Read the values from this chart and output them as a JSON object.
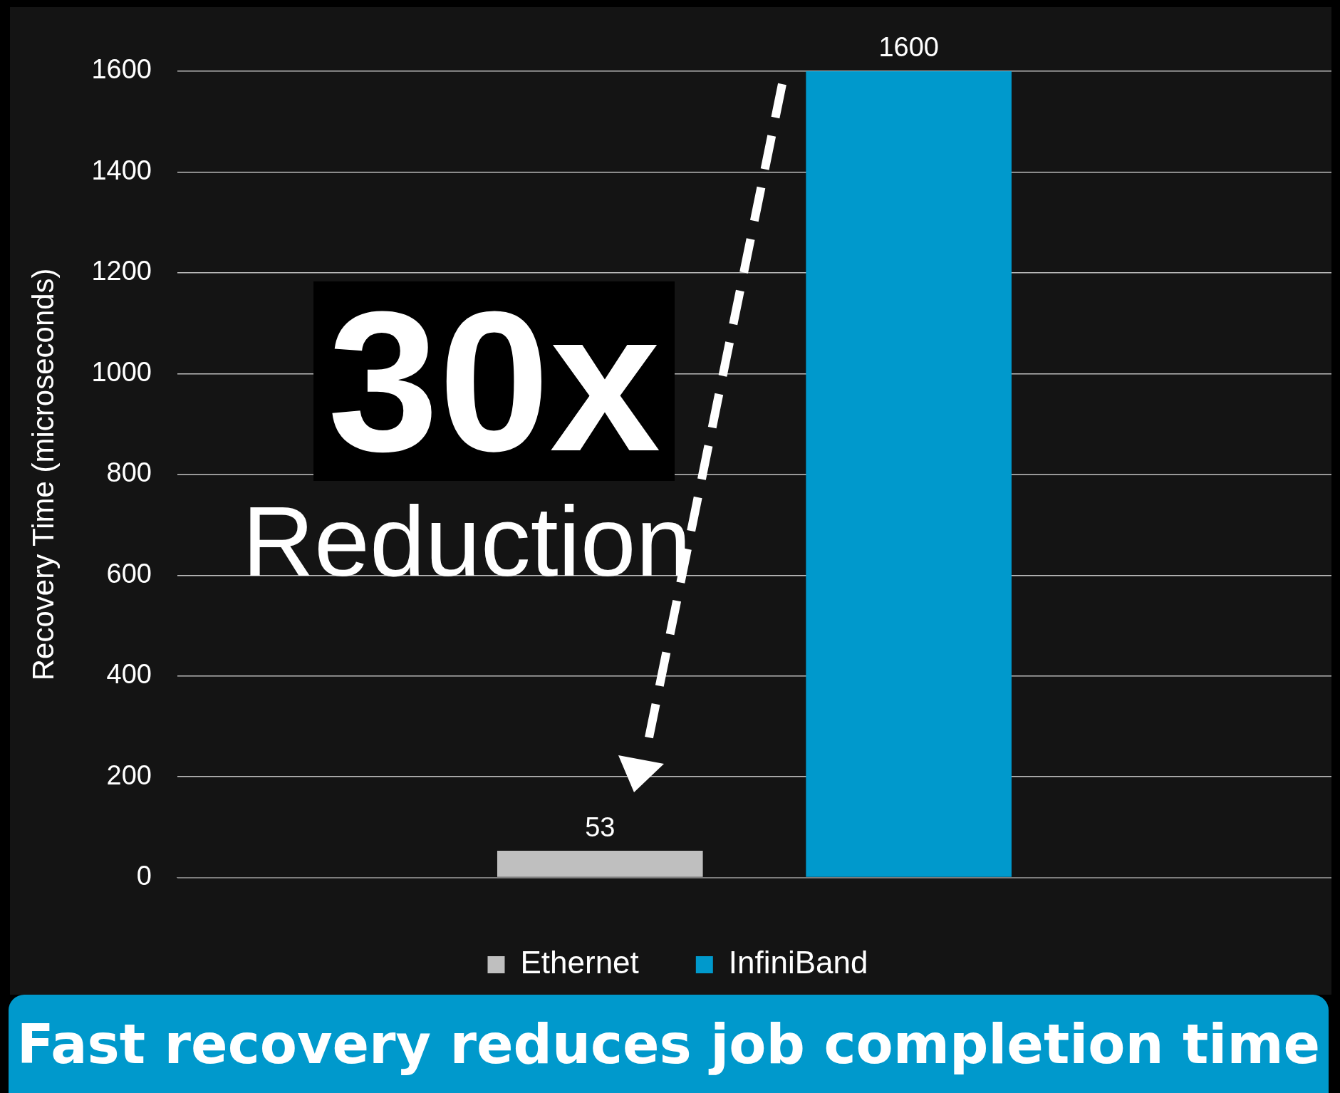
{
  "chart_data": {
    "type": "bar",
    "title": "Fast recovery reduces job completion time",
    "ylabel": "Recovery Time (microseconds)",
    "categories": [
      null
    ],
    "series": [
      {
        "name": "Ethernet",
        "color": "#bfbfbf",
        "values": [
          53
        ]
      },
      {
        "name": "InfiniBand",
        "color": "#0099cc",
        "values": [
          1600
        ]
      }
    ],
    "ylim": [
      0,
      1600
    ],
    "yticks": [
      0,
      200,
      400,
      600,
      800,
      1000,
      1200,
      1400,
      1600
    ],
    "grid": "y",
    "legend": "bottom",
    "data_labels": true,
    "annotations": [
      "30x",
      "Reduction"
    ]
  }
}
